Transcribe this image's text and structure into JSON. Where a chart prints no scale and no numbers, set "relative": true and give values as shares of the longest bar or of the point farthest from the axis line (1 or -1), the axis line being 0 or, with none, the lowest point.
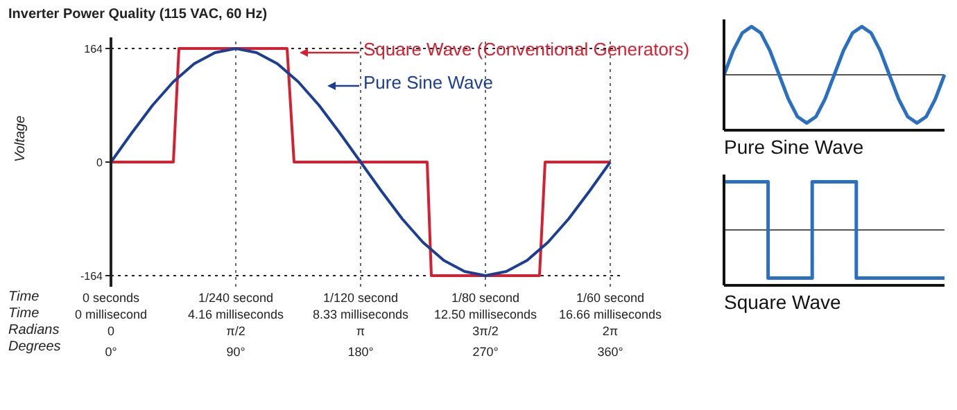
{
  "chart_data": [
    {
      "type": "line",
      "title": "Inverter Power Quality (115 VAC, 60 Hz)",
      "ylabel": "Voltage",
      "series": [
        {
          "name": "Square Wave (Conventional Generators)",
          "color": "#d42030",
          "x": [
            0,
            45,
            49,
            127,
            132,
            228,
            231,
            309,
            313,
            360
          ],
          "values": [
            0,
            0,
            164,
            164,
            0,
            0,
            -164,
            -164,
            0,
            0
          ]
        },
        {
          "name": "Pure Sine Wave",
          "color": "#1c3f94",
          "x": [
            0,
            15,
            30,
            45,
            60,
            75,
            90,
            105,
            120,
            135,
            150,
            165,
            180,
            195,
            210,
            225,
            240,
            255,
            270,
            285,
            300,
            315,
            330,
            345,
            360
          ],
          "values": [
            0,
            42,
            82,
            116,
            142,
            158,
            164,
            158,
            142,
            116,
            82,
            42,
            0,
            -42,
            -82,
            -116,
            -142,
            -158,
            -164,
            -158,
            -142,
            -116,
            -82,
            -42,
            0
          ]
        }
      ],
      "xlim": [
        0,
        370
      ],
      "xticks": [
        {
          "value": 0,
          "label": "0°"
        },
        {
          "value": 90,
          "label": "90°"
        },
        {
          "value": 180,
          "label": "180°"
        },
        {
          "value": 270,
          "label": "270°"
        },
        {
          "value": 360,
          "label": "360°"
        }
      ],
      "ylim": [
        -180,
        180
      ],
      "yticks": [
        -164,
        0,
        164
      ],
      "ref_lines": [
        {
          "axis": "x",
          "value": 90,
          "line_style": "dotted"
        },
        {
          "axis": "x",
          "value": 180,
          "line_style": "dotted"
        },
        {
          "axis": "x",
          "value": 270,
          "line_style": "dotted"
        },
        {
          "axis": "x",
          "value": 360,
          "line_style": "dotted"
        },
        {
          "axis": "y",
          "value": 164,
          "line_style": "dotted"
        },
        {
          "axis": "y",
          "value": -164,
          "line_style": "dotted"
        }
      ],
      "annotations": [
        "Time",
        "Time",
        "Radians",
        "Degrees",
        "0 seconds",
        "0 millisecond",
        "0",
        "1/240 second",
        "4.16 milliseconds",
        "π/2",
        "1/120 second",
        "8.33 milliseconds",
        "π",
        "1/80 second",
        "12.50 milliseconds",
        "3π/2",
        "1/60 second",
        "16.66 milliseconds",
        "2π"
      ],
      "legend": "top",
      "marker": "none",
      "line_style": "solid"
    },
    {
      "type": "line",
      "relative": true,
      "xlabel": "Pure Sine Wave",
      "categories": [
        null,
        null,
        null,
        null,
        null,
        null,
        null,
        null,
        null,
        null,
        null,
        null,
        null,
        null,
        null,
        null,
        null,
        null,
        null,
        null,
        null,
        null,
        null,
        null,
        null
      ],
      "series": [
        {
          "color": "#2a6fc0",
          "values": [
            0,
            0.5,
            0.87,
            1,
            0.87,
            0.5,
            0,
            -0.5,
            -0.87,
            -1,
            -0.87,
            -0.5,
            0,
            0.5,
            0.87,
            1,
            0.87,
            0.5,
            0,
            -0.5,
            -0.87,
            -1,
            -0.87,
            -0.5,
            0
          ]
        }
      ],
      "marker": "none"
    },
    {
      "type": "step",
      "relative": true,
      "xlabel": "Square Wave",
      "categories": [
        null,
        null,
        null,
        null,
        null,
        null
      ],
      "series": [
        {
          "color": "#2a6fc0",
          "values": [
            1,
            -1,
            1,
            -1,
            -1,
            -1
          ]
        }
      ],
      "marker": "none"
    }
  ]
}
